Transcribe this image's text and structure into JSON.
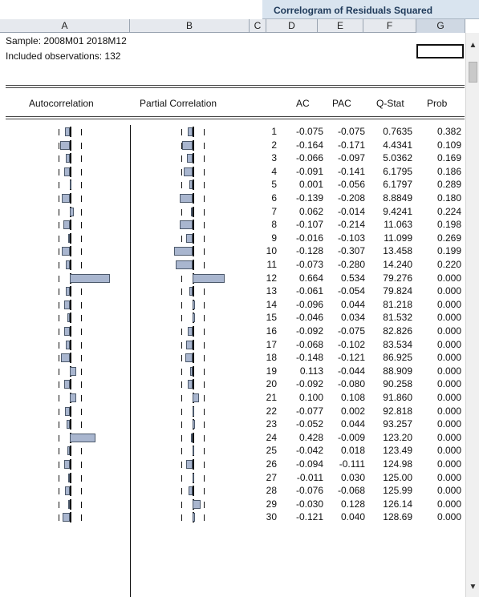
{
  "title": "Correlogram of Residuals Squared",
  "columns": [
    "A",
    "B",
    "C",
    "D",
    "E",
    "F",
    "G"
  ],
  "sample_text": "Sample: 2008M01 2018M12",
  "observations_text": "Included observations: 132",
  "headers": {
    "autocorrelation": "Autocorrelation",
    "partial_correlation": "Partial Correlation",
    "ac": "AC",
    "pac": "PAC",
    "q_stat": "Q-Stat",
    "prob": "Prob"
  },
  "bar_color": "#a9b6cf",
  "rows": [
    {
      "lag": "1",
      "ac": "-0.075",
      "pac": "-0.075",
      "q": "0.7635",
      "prob": "0.382"
    },
    {
      "lag": "2",
      "ac": "-0.164",
      "pac": "-0.171",
      "q": "4.4341",
      "prob": "0.109"
    },
    {
      "lag": "3",
      "ac": "-0.066",
      "pac": "-0.097",
      "q": "5.0362",
      "prob": "0.169"
    },
    {
      "lag": "4",
      "ac": "-0.091",
      "pac": "-0.141",
      "q": "6.1795",
      "prob": "0.186"
    },
    {
      "lag": "5",
      "ac": "0.001",
      "pac": "-0.056",
      "q": "6.1797",
      "prob": "0.289"
    },
    {
      "lag": "6",
      "ac": "-0.139",
      "pac": "-0.208",
      "q": "8.8849",
      "prob": "0.180"
    },
    {
      "lag": "7",
      "ac": "0.062",
      "pac": "-0.014",
      "q": "9.4241",
      "prob": "0.224"
    },
    {
      "lag": "8",
      "ac": "-0.107",
      "pac": "-0.214",
      "q": "11.063",
      "prob": "0.198"
    },
    {
      "lag": "9",
      "ac": "-0.016",
      "pac": "-0.103",
      "q": "11.099",
      "prob": "0.269"
    },
    {
      "lag": "10",
      "ac": "-0.128",
      "pac": "-0.307",
      "q": "13.458",
      "prob": "0.199"
    },
    {
      "lag": "11",
      "ac": "-0.073",
      "pac": "-0.280",
      "q": "14.240",
      "prob": "0.220"
    },
    {
      "lag": "12",
      "ac": "0.664",
      "pac": "0.534",
      "q": "79.276",
      "prob": "0.000"
    },
    {
      "lag": "13",
      "ac": "-0.061",
      "pac": "-0.054",
      "q": "79.824",
      "prob": "0.000"
    },
    {
      "lag": "14",
      "ac": "-0.096",
      "pac": "0.044",
      "q": "81.218",
      "prob": "0.000"
    },
    {
      "lag": "15",
      "ac": "-0.046",
      "pac": "0.034",
      "q": "81.532",
      "prob": "0.000"
    },
    {
      "lag": "16",
      "ac": "-0.092",
      "pac": "-0.075",
      "q": "82.826",
      "prob": "0.000"
    },
    {
      "lag": "17",
      "ac": "-0.068",
      "pac": "-0.102",
      "q": "83.534",
      "prob": "0.000"
    },
    {
      "lag": "18",
      "ac": "-0.148",
      "pac": "-0.121",
      "q": "86.925",
      "prob": "0.000"
    },
    {
      "lag": "19",
      "ac": "0.113",
      "pac": "-0.044",
      "q": "88.909",
      "prob": "0.000"
    },
    {
      "lag": "20",
      "ac": "-0.092",
      "pac": "-0.080",
      "q": "90.258",
      "prob": "0.000"
    },
    {
      "lag": "21",
      "ac": "0.100",
      "pac": "0.108",
      "q": "91.860",
      "prob": "0.000"
    },
    {
      "lag": "22",
      "ac": "-0.077",
      "pac": "0.002",
      "q": "92.818",
      "prob": "0.000"
    },
    {
      "lag": "23",
      "ac": "-0.052",
      "pac": "0.044",
      "q": "93.257",
      "prob": "0.000"
    },
    {
      "lag": "24",
      "ac": "0.428",
      "pac": "-0.009",
      "q": "123.20",
      "prob": "0.000"
    },
    {
      "lag": "25",
      "ac": "-0.042",
      "pac": "0.018",
      "q": "123.49",
      "prob": "0.000"
    },
    {
      "lag": "26",
      "ac": "-0.094",
      "pac": "-0.111",
      "q": "124.98",
      "prob": "0.000"
    },
    {
      "lag": "27",
      "ac": "-0.011",
      "pac": "0.030",
      "q": "125.00",
      "prob": "0.000"
    },
    {
      "lag": "28",
      "ac": "-0.076",
      "pac": "-0.068",
      "q": "125.99",
      "prob": "0.000"
    },
    {
      "lag": "29",
      "ac": "-0.030",
      "pac": "0.128",
      "q": "126.14",
      "prob": "0.000"
    },
    {
      "lag": "30",
      "ac": "-0.121",
      "pac": "0.040",
      "q": "128.69",
      "prob": "0.000"
    }
  ]
}
